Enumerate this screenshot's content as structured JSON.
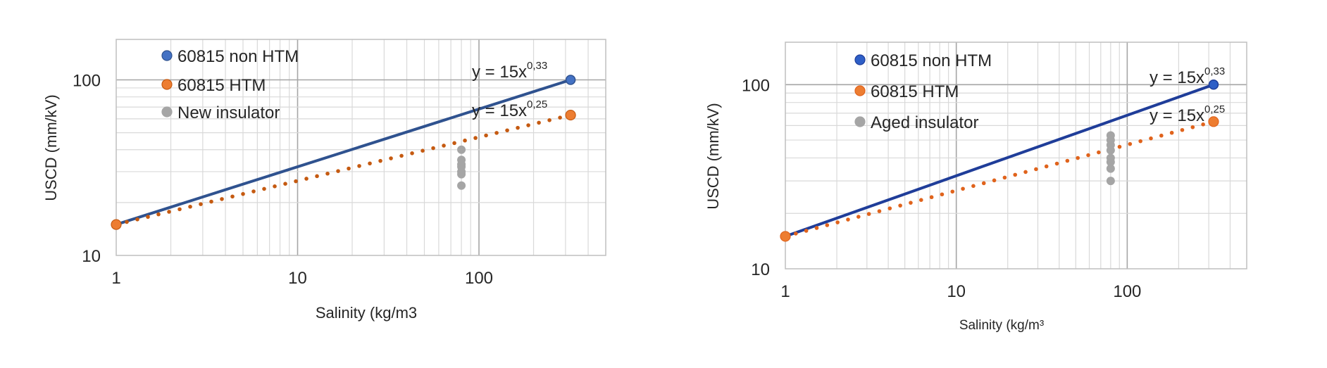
{
  "chart_data": [
    {
      "type": "scatter",
      "xscale": "log",
      "yscale": "log",
      "xlim": [
        1,
        500
      ],
      "ylim": [
        10,
        170
      ],
      "xticks": [
        1,
        10,
        100
      ],
      "xtick_labels": [
        "1",
        "10",
        "100"
      ],
      "yticks": [
        10,
        100
      ],
      "ytick_labels": [
        "10",
        "100"
      ],
      "xlabel": "Salinity (kg/m3",
      "ylabel": "USCD (mm/kV)",
      "grid": true,
      "legend_position": "top-left",
      "series": [
        {
          "name": "60815 non HTM",
          "style": "solid-line",
          "color": "#2f528f",
          "marker_color": "#4472c4",
          "x": [
            1,
            320
          ],
          "y": [
            15,
            100
          ]
        },
        {
          "name": "60815 HTM",
          "style": "dotted-line",
          "color": "#c55a11",
          "marker_color": "#ed7d31",
          "x": [
            1,
            320
          ],
          "y": [
            15,
            63
          ]
        },
        {
          "name": "New insulator",
          "style": "markers",
          "color": "#a5a5a5",
          "x": [
            80,
            80,
            80,
            80,
            80,
            80,
            80
          ],
          "y": [
            40,
            35,
            33,
            32,
            30,
            29,
            25
          ]
        }
      ],
      "annotations": [
        {
          "base": "y = 15x",
          "exp": "0,33",
          "x": 48,
          "y": 100
        },
        {
          "base": "y = 15x",
          "exp": "0,25",
          "x": 48,
          "y": 71
        }
      ]
    },
    {
      "type": "scatter",
      "xscale": "log",
      "yscale": "log",
      "xlim": [
        1,
        500
      ],
      "ylim": [
        10,
        170
      ],
      "xticks": [
        1,
        10,
        100
      ],
      "xtick_labels": [
        "1",
        "10",
        "100"
      ],
      "yticks": [
        10,
        100
      ],
      "ytick_labels": [
        "10",
        "100"
      ],
      "xlabel": "Salinity (kg/m³",
      "ylabel": "USCD (mm/kV)",
      "grid": true,
      "legend_position": "top-left",
      "series": [
        {
          "name": "60815 non HTM",
          "style": "solid-line",
          "color": "#1f3d99",
          "marker_color": "#2e5fc7",
          "x": [
            1,
            320
          ],
          "y": [
            15,
            100
          ]
        },
        {
          "name": "60815 HTM",
          "style": "dotted-line",
          "color": "#e0631c",
          "marker_color": "#ed7d31",
          "x": [
            1,
            320
          ],
          "y": [
            15,
            63
          ]
        },
        {
          "name": "Aged insulator",
          "style": "markers",
          "color": "#a5a5a5",
          "x": [
            80,
            80,
            80,
            80,
            80,
            80,
            80,
            80
          ],
          "y": [
            53,
            50,
            47,
            44,
            40,
            38,
            35,
            30
          ]
        }
      ],
      "annotations": [
        {
          "base": "y = 15x",
          "exp": "0,33",
          "x": 50,
          "y": 100
        },
        {
          "base": "y = 15x",
          "exp": "0,25",
          "x": 50,
          "y": 71
        }
      ]
    }
  ]
}
